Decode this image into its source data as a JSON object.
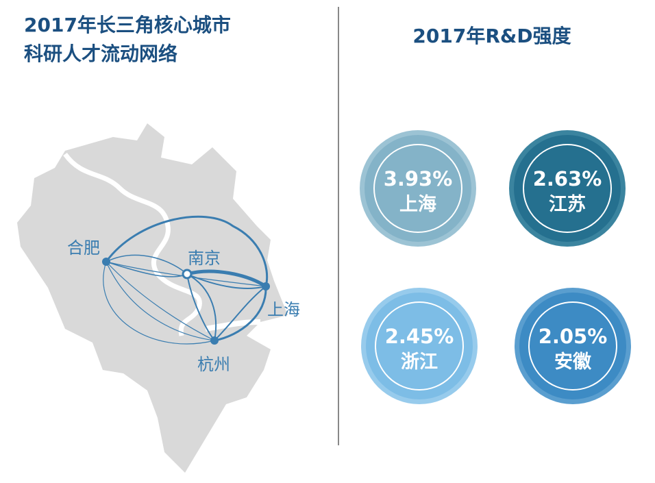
{
  "left_panel": {
    "title_lines": [
      "2017年长三角核心城市",
      "科研人才流动网络"
    ],
    "cities": [
      "合肥",
      "南京",
      "上海",
      "杭州"
    ]
  },
  "right_panel": {
    "title": "2017年R&D强度",
    "items": [
      {
        "value": "3.93%",
        "region": "上海"
      },
      {
        "value": "2.63%",
        "region": "江苏"
      },
      {
        "value": "2.45%",
        "region": "浙江"
      },
      {
        "value": "2.05%",
        "region": "安徽"
      }
    ]
  }
}
